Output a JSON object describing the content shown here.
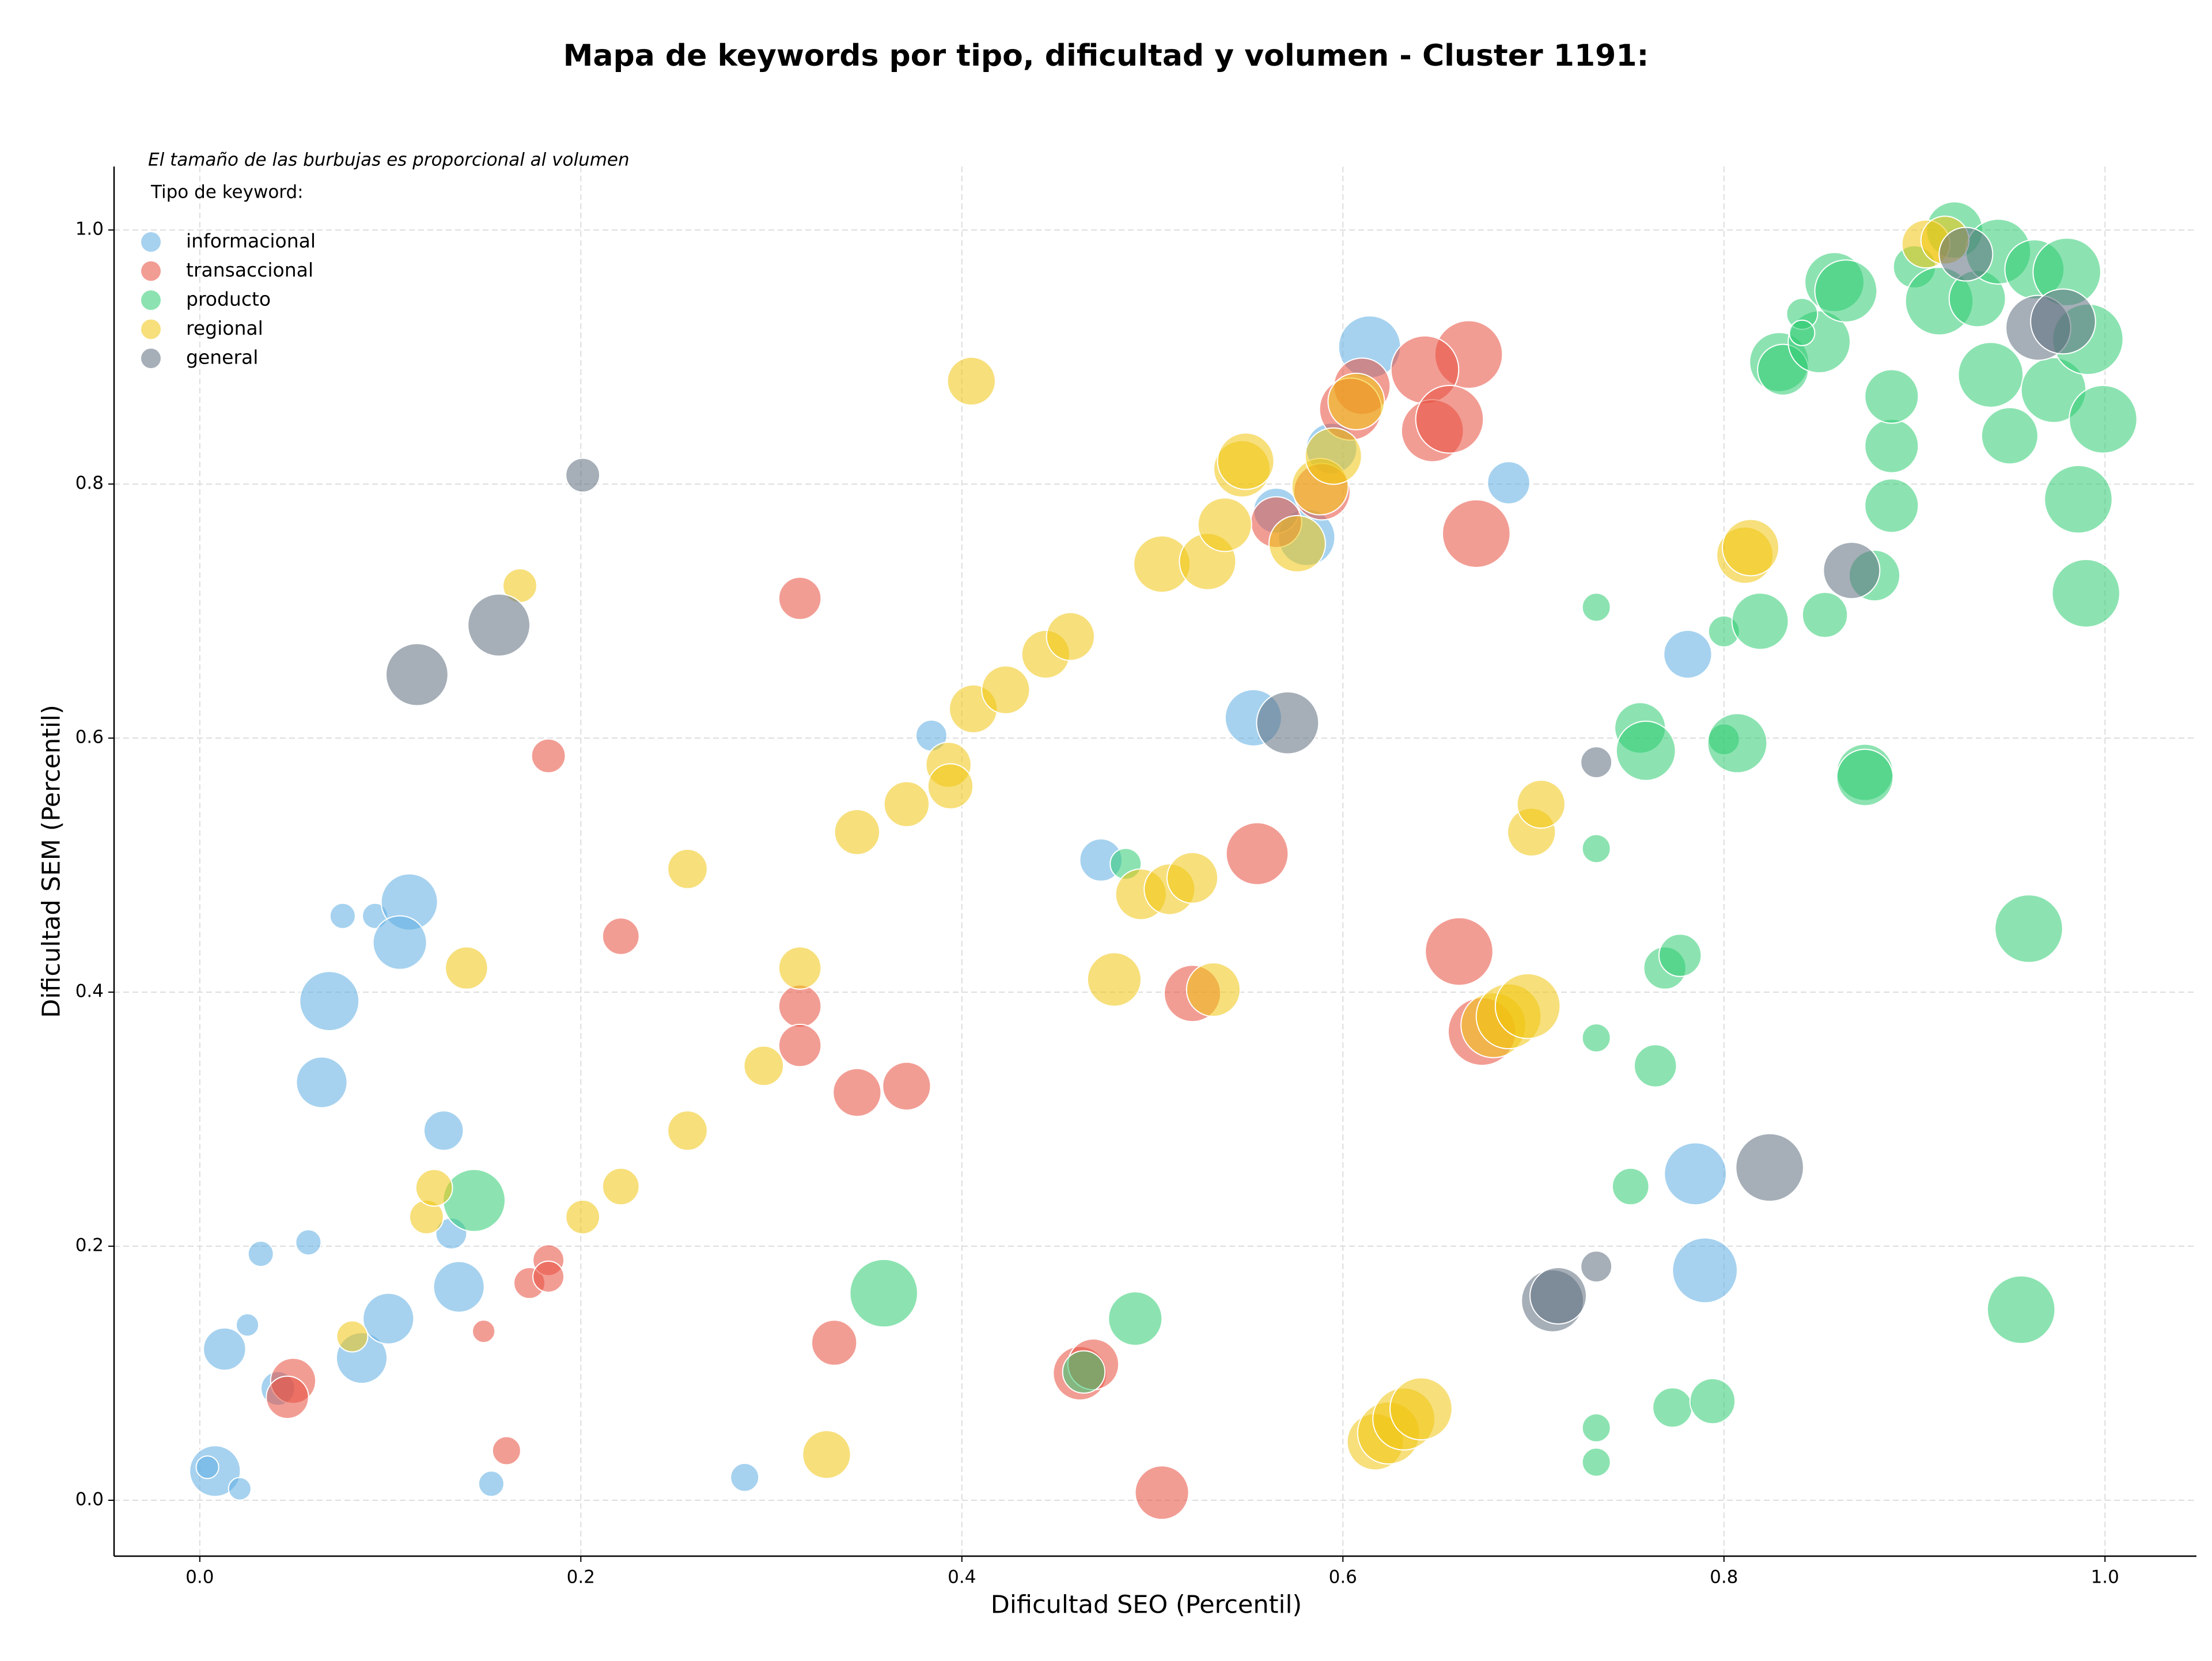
{
  "chart_data": {
    "type": "scatter",
    "title": "Mapa de keywords por tipo, dificultad y volumen - Cluster 1191:",
    "annotation": "El tamaño de las burbujas es proporcional al volumen",
    "legend_title": "Tipo de keyword:",
    "x_label": "Dificultad SEO (Percentil)",
    "y_label": "Dificultad SEM (Percentil)",
    "xlim": [
      -0.045,
      1.048
    ],
    "ylim": [
      -0.044,
      1.05
    ],
    "xticks": [
      {
        "value": 0,
        "label": "0.0"
      },
      {
        "value": 0.2,
        "label": "0.2"
      },
      {
        "value": 0.4,
        "label": "0.4"
      },
      {
        "value": 0.6,
        "label": "0.6"
      },
      {
        "value": 0.8,
        "label": "0.8"
      },
      {
        "value": 1,
        "label": "1.0"
      }
    ],
    "yticks": [
      {
        "value": 0,
        "label": "0.0"
      },
      {
        "value": 0.2,
        "label": "0.2"
      },
      {
        "value": 0.4,
        "label": "0.4"
      },
      {
        "value": 0.6,
        "label": "0.6"
      },
      {
        "value": 0.8,
        "label": "0.8"
      },
      {
        "value": 1,
        "label": "1.0"
      }
    ],
    "grid": true,
    "legend_position": "upper left",
    "series": [
      {
        "name": "informacional",
        "color": "#5DADE2",
        "x": [
          0.008,
          0.004,
          0.021,
          0.025,
          0.013,
          0.041,
          0.032,
          0.057,
          0.085,
          0.099,
          0.075,
          0.092,
          0.068,
          0.064,
          0.11,
          0.105,
          0.128,
          0.132,
          0.136,
          0.153,
          0.286,
          0.384,
          0.473,
          0.553,
          0.581,
          0.594,
          0.614,
          0.687,
          0.781,
          0.785,
          0.79,
          0.565
        ],
        "y": [
          0.023,
          0.026,
          0.009,
          0.138,
          0.119,
          0.088,
          0.194,
          0.203,
          0.112,
          0.143,
          0.46,
          0.46,
          0.393,
          0.329,
          0.471,
          0.439,
          0.291,
          0.21,
          0.168,
          0.013,
          0.018,
          0.602,
          0.504,
          0.616,
          0.758,
          0.828,
          0.908,
          0.801,
          0.666,
          0.257,
          0.181,
          0.779
        ],
        "sizes": [
          324,
          64,
          64,
          64,
          225,
          144,
          81,
          81,
          324,
          324,
          81,
          81,
          441,
          324,
          400,
          361,
          196,
          121,
          324,
          81,
          100,
          121,
          225,
          400,
          400,
          324,
          484,
          225,
          289,
          484,
          529,
          256
        ]
      },
      {
        "name": "transaccional",
        "color": "#E74C3C",
        "x": [
          0.049,
          0.046,
          0.149,
          0.161,
          0.173,
          0.183,
          0.183,
          0.183,
          0.221,
          0.315,
          0.315,
          0.315,
          0.333,
          0.345,
          0.371,
          0.462,
          0.469,
          0.505,
          0.521,
          0.555,
          0.661,
          0.673,
          0.67,
          0.666,
          0.643,
          0.647,
          0.656,
          0.61,
          0.604,
          0.589,
          0.565
        ],
        "y": [
          0.094,
          0.081,
          0.133,
          0.039,
          0.171,
          0.189,
          0.176,
          0.586,
          0.444,
          0.71,
          0.389,
          0.358,
          0.124,
          0.321,
          0.326,
          0.1,
          0.107,
          0.006,
          0.399,
          0.509,
          0.432,
          0.369,
          0.761,
          0.902,
          0.89,
          0.842,
          0.851,
          0.877,
          0.859,
          0.794,
          0.77
        ],
        "sizes": [
          256,
          225,
          64,
          100,
          121,
          121,
          121,
          144,
          169,
          225,
          225,
          225,
          256,
          289,
          289,
          361,
          324,
          361,
          400,
          484,
          576,
          576,
          576,
          576,
          576,
          484,
          576,
          400,
          484,
          400,
          324
        ]
      },
      {
        "name": "producto",
        "color": "#2ECC71",
        "x": [
          0.144,
          0.359,
          0.464,
          0.491,
          0.486,
          0.733,
          0.733,
          0.733,
          0.733,
          0.733,
          0.751,
          0.764,
          0.769,
          0.777,
          0.773,
          0.794,
          0.756,
          0.759,
          0.8,
          0.8,
          0.807,
          0.819,
          0.853,
          0.874,
          0.874,
          0.879,
          0.888,
          0.888,
          0.888,
          0.829,
          0.831,
          0.85,
          0.841,
          0.841,
          0.858,
          0.864,
          0.9,
          0.913,
          0.921,
          0.933,
          0.94,
          0.944,
          0.95,
          0.963,
          0.973,
          0.98,
          0.991,
          0.999,
          0.986,
          0.99,
          0.96,
          0.956
        ],
        "y": [
          0.236,
          0.163,
          0.101,
          0.143,
          0.501,
          0.703,
          0.513,
          0.364,
          0.057,
          0.03,
          0.247,
          0.342,
          0.419,
          0.429,
          0.073,
          0.078,
          0.608,
          0.59,
          0.684,
          0.599,
          0.596,
          0.692,
          0.697,
          0.573,
          0.569,
          0.728,
          0.783,
          0.83,
          0.869,
          0.896,
          0.89,
          0.912,
          0.934,
          0.919,
          0.959,
          0.952,
          0.971,
          0.944,
          1.0,
          0.946,
          0.886,
          0.983,
          0.838,
          0.969,
          0.874,
          0.967,
          0.914,
          0.851,
          0.788,
          0.714,
          0.45,
          0.15
        ],
        "sizes": [
          484,
          576,
          225,
          361,
          121,
          100,
          100,
          100,
          100,
          100,
          169,
          225,
          225,
          225,
          196,
          256,
          324,
          441,
          121,
          121,
          441,
          400,
          256,
          400,
          400,
          324,
          361,
          361,
          361,
          441,
          324,
          484,
          121,
          81,
          441,
          484,
          225,
          576,
          400,
          400,
          529,
          529,
          400,
          441,
          529,
          576,
          625,
          576,
          576,
          576,
          576,
          576
        ]
      },
      {
        "name": "regional",
        "color": "#F1C40F",
        "x": [
          0.08,
          0.119,
          0.123,
          0.14,
          0.168,
          0.201,
          0.221,
          0.256,
          0.256,
          0.296,
          0.315,
          0.329,
          0.345,
          0.371,
          0.393,
          0.394,
          0.405,
          0.406,
          0.423,
          0.444,
          0.457,
          0.48,
          0.494,
          0.509,
          0.521,
          0.532,
          0.505,
          0.529,
          0.538,
          0.547,
          0.549,
          0.576,
          0.588,
          0.595,
          0.607,
          0.617,
          0.624,
          0.632,
          0.641,
          0.679,
          0.687,
          0.697,
          0.699,
          0.704,
          0.811,
          0.814,
          0.906,
          0.916
        ],
        "y": [
          0.129,
          0.223,
          0.246,
          0.419,
          0.72,
          0.223,
          0.247,
          0.497,
          0.291,
          0.342,
          0.419,
          0.036,
          0.526,
          0.548,
          0.579,
          0.562,
          0.881,
          0.623,
          0.638,
          0.666,
          0.68,
          0.41,
          0.477,
          0.481,
          0.49,
          0.402,
          0.737,
          0.739,
          0.768,
          0.812,
          0.818,
          0.753,
          0.798,
          0.822,
          0.865,
          0.046,
          0.053,
          0.064,
          0.072,
          0.374,
          0.381,
          0.389,
          0.526,
          0.548,
          0.744,
          0.75,
          0.989,
          0.992
        ],
        "sizes": [
          121,
          144,
          169,
          225,
          144,
          144,
          169,
          196,
          196,
          196,
          225,
          289,
          256,
          256,
          256,
          256,
          289,
          289,
          289,
          289,
          289,
          361,
          324,
          324,
          324,
          361,
          400,
          400,
          361,
          400,
          400,
          400,
          400,
          400,
          400,
          400,
          484,
          484,
          484,
          529,
          529,
          529,
          289,
          289,
          400,
          400,
          289,
          289
        ]
      },
      {
        "name": "general",
        "color": "#5D6D7E",
        "x": [
          0.201,
          0.114,
          0.157,
          0.571,
          0.733,
          0.733,
          0.71,
          0.713,
          0.824,
          0.867,
          0.927,
          0.965,
          0.978
        ],
        "y": [
          0.807,
          0.65,
          0.689,
          0.612,
          0.581,
          0.184,
          0.157,
          0.161,
          0.262,
          0.732,
          0.981,
          0.923,
          0.928
        ],
        "sizes": [
          144,
          484,
          484,
          484,
          121,
          121,
          484,
          400,
          576,
          400,
          361,
          529,
          529
        ]
      }
    ]
  }
}
